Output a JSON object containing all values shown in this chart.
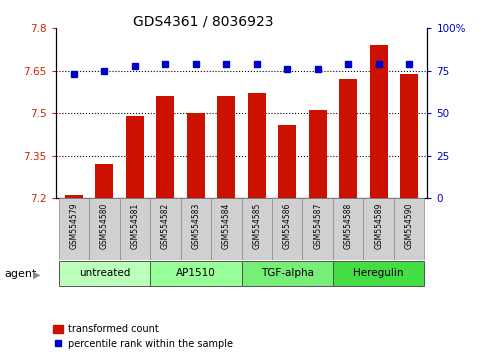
{
  "title": "GDS4361 / 8036923",
  "samples": [
    "GSM554579",
    "GSM554580",
    "GSM554581",
    "GSM554582",
    "GSM554583",
    "GSM554584",
    "GSM554585",
    "GSM554586",
    "GSM554587",
    "GSM554588",
    "GSM554589",
    "GSM554590"
  ],
  "bar_values": [
    7.21,
    7.32,
    7.49,
    7.56,
    7.5,
    7.56,
    7.57,
    7.46,
    7.51,
    7.62,
    7.74,
    7.64
  ],
  "dot_values": [
    73,
    75,
    78,
    79,
    79,
    79,
    79,
    76,
    76,
    79,
    79,
    79
  ],
  "bar_color": "#cc1100",
  "dot_color": "#0000cc",
  "ylim_left": [
    7.2,
    7.8
  ],
  "ylim_right": [
    0,
    100
  ],
  "yticks_left": [
    7.2,
    7.35,
    7.5,
    7.65,
    7.8
  ],
  "yticks_right": [
    0,
    25,
    50,
    75,
    100
  ],
  "ytick_labels_left": [
    "7.2",
    "7.35",
    "7.5",
    "7.65",
    "7.8"
  ],
  "ytick_labels_right": [
    "0",
    "25",
    "50",
    "75",
    "100%"
  ],
  "hlines": [
    7.35,
    7.5,
    7.65
  ],
  "groups": [
    {
      "label": "untreated",
      "start": 0,
      "end": 3,
      "color": "#bbffbb"
    },
    {
      "label": "AP1510",
      "start": 3,
      "end": 6,
      "color": "#99ff99"
    },
    {
      "label": "TGF-alpha",
      "start": 6,
      "end": 9,
      "color": "#77ee77"
    },
    {
      "label": "Heregulin",
      "start": 9,
      "end": 12,
      "color": "#44dd44"
    }
  ],
  "legend_bar_label": "transformed count",
  "legend_dot_label": "percentile rank within the sample",
  "agent_label": "agent",
  "background_color": "#ffffff",
  "tick_color_left": "#cc2200",
  "tick_color_right": "#0000cc",
  "sample_box_color": "#d0d0d0",
  "bar_width": 0.6
}
